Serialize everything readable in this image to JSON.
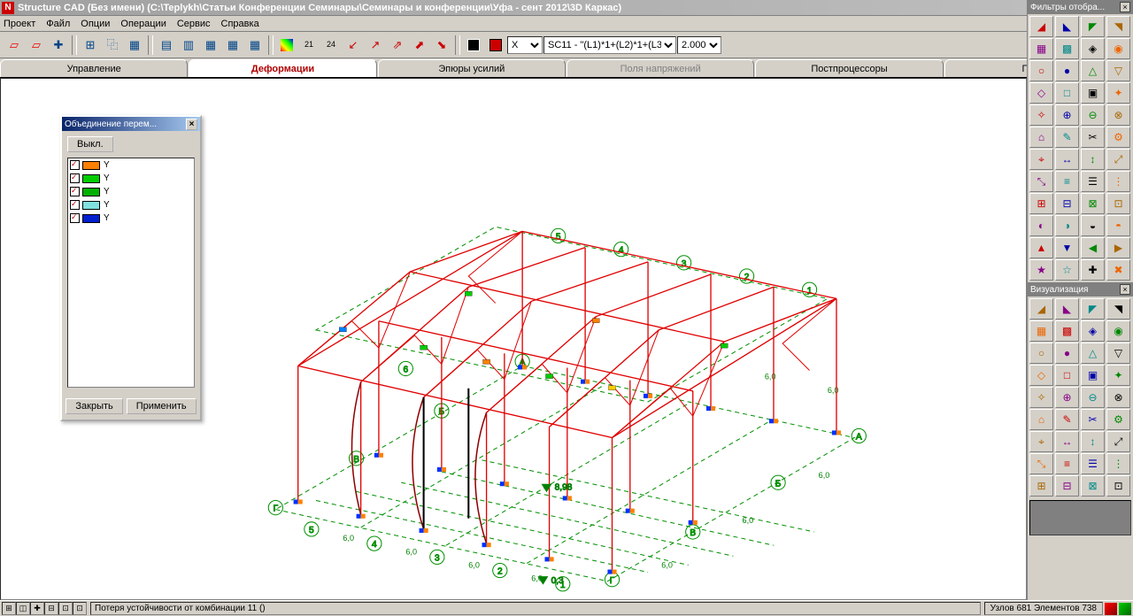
{
  "title": "Structure CAD (Без имени) (C:\\Teplykh\\Статьи Конференции Семинары\\Семинары и конференции\\Уфа - сент 2012\\3D Каркас)",
  "menu": [
    "Проект",
    "Файл",
    "Опции",
    "Операции",
    "Сервис",
    "Справка"
  ],
  "combo1": "X",
  "combo2": "SC11 - \"(L1)*1+(L2)*1+(L3)",
  "combo3": "2.000",
  "tabs": [
    {
      "label": "Управление",
      "state": "normal"
    },
    {
      "label": "Деформации",
      "state": "active"
    },
    {
      "label": "Эпюры усилий",
      "state": "normal"
    },
    {
      "label": "Поля напряжений",
      "state": "disabled"
    },
    {
      "label": "Постпроцессоры",
      "state": "normal"
    },
    {
      "label": "Группы",
      "state": "normal"
    }
  ],
  "side_panels": [
    {
      "title": "Фильтры отобра..."
    },
    {
      "title": "Визуализация"
    }
  ],
  "floating": {
    "title": "Объединение перем...",
    "btn_off": "Выкл.",
    "rows": [
      {
        "color": "#ff8000",
        "label": "Y"
      },
      {
        "color": "#00cc00",
        "label": "Y"
      },
      {
        "color": "#00b000",
        "label": "Y"
      },
      {
        "color": "#80e0e0",
        "label": "Y"
      },
      {
        "color": "#0020d0",
        "label": "Y"
      }
    ],
    "btn_close": "Закрыть",
    "btn_apply": "Применить"
  },
  "status": {
    "text": "Потеря устойчивости от комбинации 11 ()",
    "info": "Узлов 681 Элементов 738"
  },
  "model": {
    "structure_color": "#e00000",
    "grid_color": "#009000",
    "support_colors": [
      "#0030ff",
      "#ff8000"
    ],
    "grid_axes_letters": [
      "А",
      "Б",
      "В",
      "Г"
    ],
    "grid_axes_numbers": [
      "1",
      "2",
      "3",
      "4",
      "5",
      "6"
    ],
    "grid_spacing": "6,0",
    "value_labels": [
      "8,98",
      "0,3"
    ],
    "background": "#ffffff"
  },
  "toolbar_icons": [
    "⬚",
    "⬚",
    "✚",
    "▦",
    "⿻",
    "▤",
    "▥",
    "▦",
    "▦",
    "▦",
    "▦",
    "■",
    "21",
    "24",
    "↗",
    "⇗",
    "⬈",
    "⬊",
    "⬋",
    "■",
    "■"
  ],
  "filter_icons_count": 48,
  "viz_icons_count": 36
}
